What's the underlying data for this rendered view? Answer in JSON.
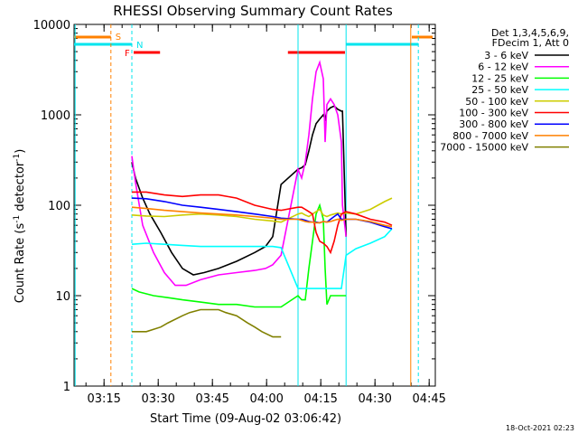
{
  "chart_data": {
    "type": "line",
    "title": "RHESSI Observing Summary Count Rates",
    "xlabel": "Start Time (09-Aug-02 03:06:42)",
    "ylabel_main": "Count Rate (s",
    "ylabel_sup1": "-1",
    "ylabel_mid": " detector",
    "ylabel_sup2": "-1",
    "ylabel_end": ")",
    "y_scale": "log",
    "ylim": [
      1,
      10000
    ],
    "xlim_minutes": [
      0,
      100
    ],
    "x_ticks": [
      {
        "label": "03:15",
        "min": 8.3
      },
      {
        "label": "03:30",
        "min": 23.3
      },
      {
        "label": "03:45",
        "min": 38.3
      },
      {
        "label": "04:00",
        "min": 53.3
      },
      {
        "label": "04:15",
        "min": 68.3
      },
      {
        "label": "04:30",
        "min": 83.3
      },
      {
        "label": "04:45",
        "min": 98.3
      }
    ],
    "y_ticks": [
      {
        "label": "1",
        "v": 1
      },
      {
        "label": "10",
        "v": 10
      },
      {
        "label": "100",
        "v": 100
      },
      {
        "label": "1000",
        "v": 1000
      },
      {
        "label": "10000",
        "v": 10000
      }
    ],
    "legend_header": [
      "Det 1,3,4,5,6,9,",
      "FDecim 1, Att 0"
    ],
    "legend_placement": "right",
    "series": [
      {
        "name": "3 - 6 keV",
        "color": "#000000",
        "x": [
          16,
          17,
          19,
          21,
          24,
          27,
          30,
          33,
          36,
          40,
          45,
          50,
          53,
          55,
          57.3,
          62,
          63,
          64,
          65,
          66,
          67,
          68,
          69,
          69.5,
          70,
          71,
          72,
          73,
          74,
          74.3,
          75.3
        ],
        "y": [
          300,
          200,
          120,
          80,
          50,
          30,
          20,
          17,
          18,
          20,
          24,
          30,
          35,
          45,
          170,
          250,
          260,
          280,
          400,
          600,
          800,
          900,
          1000,
          900,
          1100,
          1200,
          1250,
          1150,
          1100,
          1100,
          45
        ]
      },
      {
        "name": "6 - 12 keV",
        "color": "#ff00ff",
        "x": [
          16,
          17,
          19,
          22,
          25,
          28,
          31,
          35,
          40,
          45,
          50,
          53,
          55,
          57.3,
          62,
          63,
          64,
          65,
          66,
          67,
          68,
          69,
          69.5,
          70,
          71,
          72,
          73,
          74,
          74.3,
          75.3
        ],
        "y": [
          350,
          180,
          60,
          30,
          18,
          13,
          13,
          15,
          17,
          18,
          19,
          20,
          22,
          28,
          250,
          200,
          300,
          600,
          1500,
          3000,
          3800,
          2500,
          500,
          1300,
          1500,
          1300,
          1000,
          500,
          100,
          45
        ]
      },
      {
        "name": "12 - 25 keV",
        "color": "#00ff00",
        "x": [
          16,
          18,
          22,
          26,
          30,
          35,
          40,
          45,
          50,
          55,
          57.3,
          62,
          63,
          64,
          65,
          66,
          67,
          68,
          69,
          69.5,
          70,
          71,
          72,
          73,
          74,
          75.3
        ],
        "y": [
          12,
          11,
          10,
          9.5,
          9,
          8.5,
          8,
          8,
          7.5,
          7.5,
          7.5,
          10,
          9,
          9,
          20,
          40,
          80,
          100,
          70,
          20,
          8,
          10,
          10,
          10,
          10,
          10
        ]
      },
      {
        "name": "25 - 50 keV",
        "color": "#00ffff",
        "x": [
          16,
          20,
          25,
          30,
          35,
          40,
          45,
          50,
          55,
          57.3,
          62,
          63,
          64,
          65,
          66,
          67,
          68,
          69,
          70,
          71,
          72,
          73,
          74,
          75.3,
          78,
          82,
          86,
          88
        ],
        "y": [
          37,
          38,
          37,
          36,
          35,
          35,
          35,
          35,
          35,
          34,
          12,
          12,
          12,
          12,
          12,
          12,
          12,
          12,
          12,
          12,
          12,
          12,
          12,
          28,
          33,
          38,
          45,
          55
        ]
      },
      {
        "name": "50 - 100 keV",
        "color": "#cccc00",
        "x": [
          16,
          20,
          25,
          30,
          35,
          40,
          45,
          50,
          55,
          57.3,
          62,
          63,
          64,
          65,
          66,
          67,
          68,
          69,
          70,
          71,
          72,
          73,
          74,
          75.3,
          78,
          82,
          86,
          88
        ],
        "y": [
          78,
          76,
          75,
          78,
          80,
          78,
          75,
          70,
          67,
          65,
          80,
          82,
          78,
          75,
          80,
          85,
          90,
          78,
          75,
          78,
          80,
          82,
          80,
          82,
          80,
          90,
          110,
          120
        ]
      },
      {
        "name": "100 - 300 keV",
        "color": "#ff0000",
        "x": [
          16,
          20,
          25,
          30,
          35,
          40,
          45,
          50,
          55,
          57.3,
          62,
          63,
          64,
          65,
          66,
          67,
          68,
          69,
          70,
          71,
          72,
          73,
          74,
          75.3,
          78,
          82,
          86,
          88
        ],
        "y": [
          140,
          140,
          130,
          125,
          130,
          130,
          120,
          100,
          90,
          88,
          95,
          95,
          90,
          85,
          80,
          50,
          40,
          38,
          35,
          30,
          40,
          60,
          80,
          85,
          80,
          70,
          65,
          60
        ]
      },
      {
        "name": "300 - 800 keV",
        "color": "#0000ff",
        "x": [
          16,
          20,
          25,
          30,
          35,
          40,
          45,
          50,
          55,
          57.3,
          62,
          63,
          64,
          65,
          66,
          67,
          68,
          69,
          70,
          71,
          72,
          73,
          74,
          75.3,
          78,
          82,
          86,
          88
        ],
        "y": [
          120,
          118,
          110,
          100,
          95,
          90,
          85,
          80,
          75,
          72,
          70,
          70,
          68,
          66,
          65,
          65,
          64,
          66,
          65,
          70,
          75,
          80,
          70,
          70,
          70,
          65,
          58,
          55
        ]
      },
      {
        "name": "800 - 7000 keV",
        "color": "#ff8000",
        "x": [
          16,
          20,
          25,
          30,
          35,
          40,
          45,
          50,
          55,
          57.3,
          62,
          63,
          64,
          65,
          66,
          67,
          68,
          69,
          70,
          71,
          72,
          73,
          74,
          75.3,
          78,
          82,
          86,
          88
        ],
        "y": [
          95,
          92,
          88,
          85,
          82,
          80,
          78,
          75,
          72,
          70,
          70,
          68,
          66,
          65,
          65,
          64,
          64,
          66,
          65,
          66,
          68,
          70,
          68,
          70,
          70,
          66,
          60,
          58
        ]
      },
      {
        "name": "7000 - 15000 keV",
        "color": "#808000",
        "x": [
          16,
          20,
          24,
          26,
          30,
          32,
          35,
          38,
          40,
          42,
          45,
          48,
          50,
          52,
          55,
          57.3
        ],
        "y": [
          4,
          4,
          4.5,
          5,
          6,
          6.5,
          7,
          7,
          7,
          6.5,
          6,
          5,
          4.5,
          4,
          3.5,
          3.5
        ]
      }
    ],
    "annotations": [
      {
        "label": "S",
        "color": "#ff8000"
      },
      {
        "label": "N",
        "color": "#00e5ee"
      },
      {
        "label": "F",
        "color": "#ff0000"
      }
    ],
    "timestamp": "18-Oct-2021 02:23"
  }
}
